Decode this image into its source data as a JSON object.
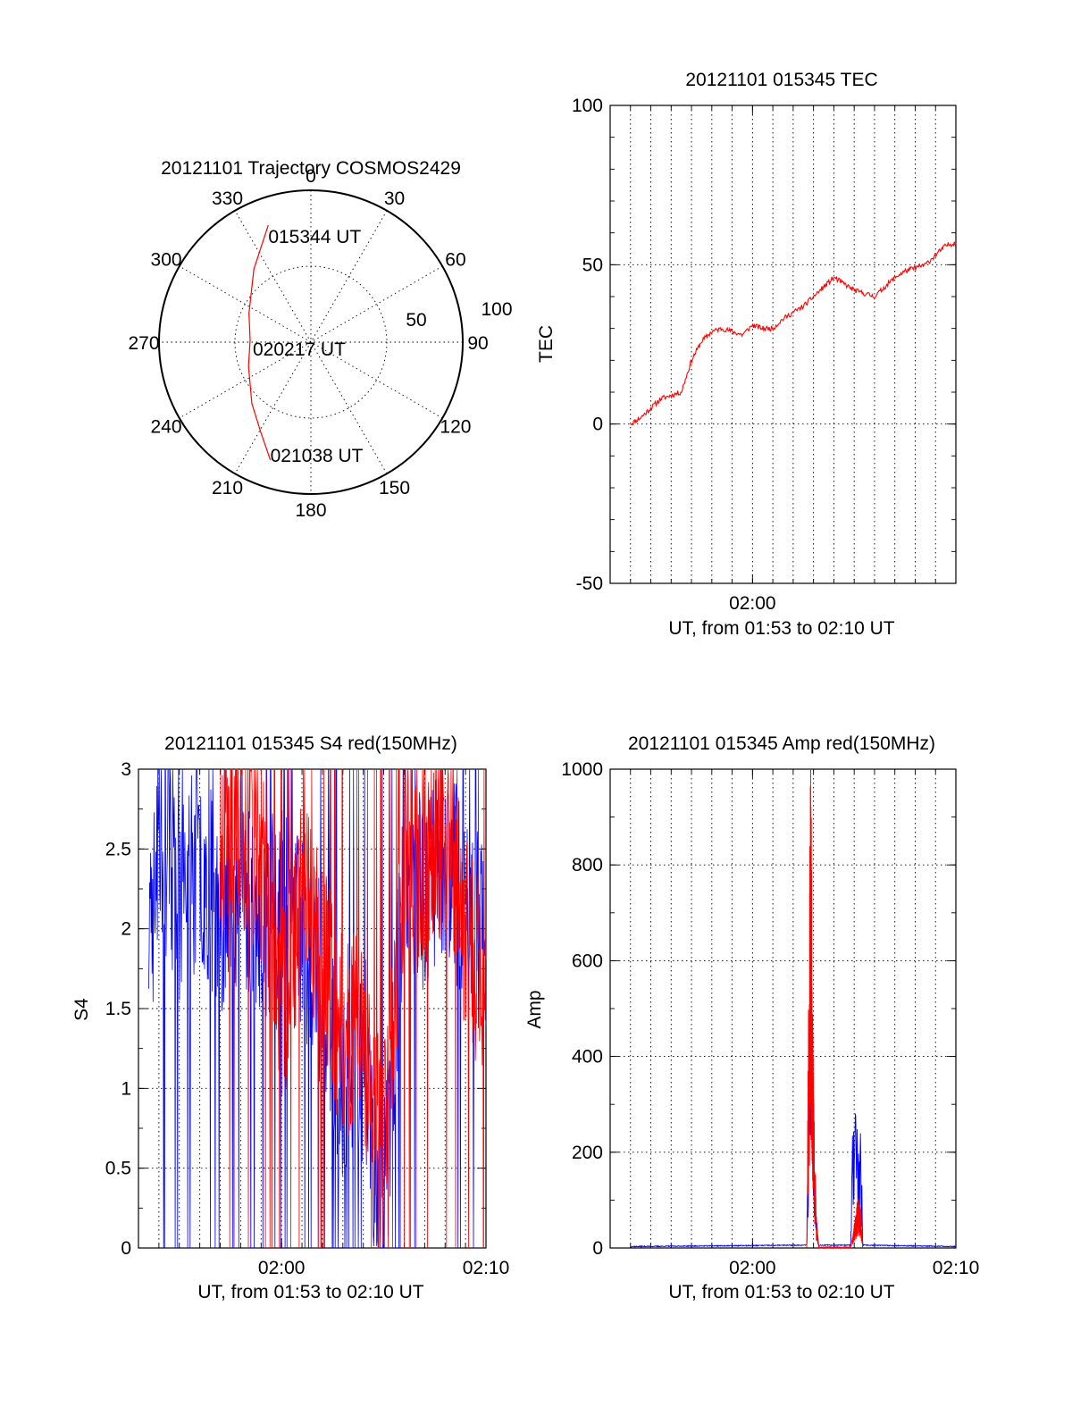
{
  "chart_data": [
    {
      "id": "polar",
      "type": "scatter",
      "subtype": "polar-trajectory",
      "title": "20121101 Trajectory COSMOS2429",
      "azimuth_labels": [
        "0",
        "30",
        "60",
        "90",
        "120",
        "150",
        "180",
        "210",
        "240",
        "270",
        "300",
        "330"
      ],
      "radial_labels": [
        "50",
        "100"
      ],
      "radial_range": [
        0,
        100
      ],
      "rings": [
        50,
        100
      ],
      "point_labels": {
        "start": "015344 UT",
        "mid": "020217 UT",
        "end": "021038 UT"
      },
      "trajectory": {
        "color": "#ff0000",
        "points": [
          [
            -20,
            82
          ],
          [
            -38,
            61
          ],
          [
            -65,
            45
          ],
          [
            -88,
            40
          ],
          [
            -111,
            44
          ],
          [
            -136,
            56
          ],
          [
            -151,
            68
          ],
          [
            -161,
            82
          ]
        ]
      }
    },
    {
      "id": "tec",
      "type": "line",
      "title": "20121101 015345 TEC",
      "xlabel": "UT, from 01:53 to 02:10 UT",
      "ylabel": "TEC",
      "xlim": [
        "01:53",
        "02:10"
      ],
      "ylim": [
        -50,
        100
      ],
      "yticks": [
        "-50",
        "0",
        "50",
        "100"
      ],
      "xticks": [
        {
          "x": "02:00",
          "label": "02:00"
        }
      ],
      "series": [
        {
          "color": "#ff0000",
          "x": [
            "01:54",
            "01:54:30",
            "01:55",
            "01:55:30",
            "01:56",
            "01:56:30",
            "01:57",
            "01:57:30",
            "01:58",
            "01:58:30",
            "01:59",
            "01:59:30",
            "02:00",
            "02:00:30",
            "02:01",
            "02:01:30",
            "02:02",
            "02:02:30",
            "02:03",
            "02:03:30",
            "02:04",
            "02:04:30",
            "02:05",
            "02:05:30",
            "02:06",
            "02:06:30",
            "02:07",
            "02:07:30",
            "02:08",
            "02:08:30",
            "02:09",
            "02:09:30",
            "02:10"
          ],
          "values": [
            0,
            2,
            5,
            8,
            9,
            10,
            20,
            26,
            29,
            30,
            29,
            28,
            31,
            30,
            30,
            33,
            35,
            37,
            40,
            43,
            46,
            44,
            42,
            41,
            40,
            43,
            46,
            48,
            49,
            50,
            53,
            56,
            57
          ]
        }
      ]
    },
    {
      "id": "s4",
      "type": "line",
      "title": "20121101 015345 S4 red(150MHz)",
      "xlabel": "UT, from 01:53 to 02:10 UT",
      "ylabel": "S4",
      "xlim": [
        "01:53",
        "02:10"
      ],
      "ylim": [
        0,
        3
      ],
      "yticks": [
        "0",
        "0.5",
        "1",
        "1.5",
        "2",
        "2.5",
        "3"
      ],
      "xticks": [
        {
          "x": "02:00",
          "label": "02:00"
        },
        {
          "x": "02:10",
          "label": "02:10"
        }
      ],
      "series": [
        {
          "color": "#0000ff",
          "x": [
            "01:53:30",
            "01:54",
            "01:55",
            "01:56",
            "01:57",
            "01:58",
            "01:59",
            "02:00",
            "02:01",
            "02:02",
            "02:02:30",
            "02:03",
            "02:03:30",
            "02:04",
            "02:04:30",
            "02:05",
            "02:05:30",
            "02:06",
            "02:07",
            "02:08",
            "02:09",
            "02:10"
          ],
          "values": [
            1.8,
            2.6,
            2.2,
            2.4,
            2.1,
            2.3,
            2.0,
            2.2,
            2.0,
            1.6,
            1.2,
            0.9,
            1.3,
            1.1,
            0.5,
            0.3,
            1.2,
            2.4,
            2.2,
            2.5,
            2.1,
            1.9
          ]
        },
        {
          "color": "#ff0000",
          "x": [
            "01:57",
            "01:58",
            "01:59",
            "02:00",
            "02:01",
            "02:02",
            "02:03",
            "02:04",
            "02:04:30",
            "02:05",
            "02:05:30",
            "02:06",
            "02:07",
            "02:08",
            "02:09",
            "02:10"
          ],
          "values": [
            2.5,
            2.7,
            2.4,
            1.5,
            2.2,
            1.8,
            1.3,
            1.4,
            0.8,
            0.6,
            1.5,
            2.3,
            2.4,
            2.6,
            2.0,
            1.6
          ]
        }
      ]
    },
    {
      "id": "amp",
      "type": "line",
      "title": "20121101 015345 Amp red(150MHz)",
      "xlabel": "UT, from 01:53 to 02:10 UT",
      "ylabel": "Amp",
      "xlim": [
        "01:53",
        "02:10"
      ],
      "ylim": [
        0,
        1000
      ],
      "yticks": [
        "0",
        "200",
        "400",
        "600",
        "800",
        "1000"
      ],
      "xticks": [
        {
          "x": "02:00",
          "label": "02:00"
        },
        {
          "x": "02:10",
          "label": "02:10"
        }
      ],
      "series": [
        {
          "color": "#0000ff",
          "x": [
            "01:54",
            "02:02:40",
            "02:02:45",
            "02:02:50",
            "02:02:55",
            "02:03",
            "02:03:10",
            "02:03:15",
            "02:04:50",
            "02:04:55",
            "02:05",
            "02:05:05",
            "02:05:10",
            "02:05:20",
            "02:05:25",
            "02:10"
          ],
          "values": [
            2,
            5,
            280,
            560,
            440,
            300,
            60,
            5,
            5,
            240,
            180,
            260,
            200,
            230,
            5,
            2
          ]
        },
        {
          "color": "#ff0000",
          "x": [
            "02:02:40",
            "02:02:48",
            "02:02:52",
            "02:02:56",
            "02:03",
            "02:03:08",
            "02:03:15",
            "02:04:50",
            "02:05",
            "02:05:10",
            "02:05:20",
            "02:05:25"
          ],
          "values": [
            0,
            660,
            900,
            520,
            300,
            60,
            0,
            0,
            40,
            90,
            70,
            0
          ]
        }
      ]
    }
  ]
}
